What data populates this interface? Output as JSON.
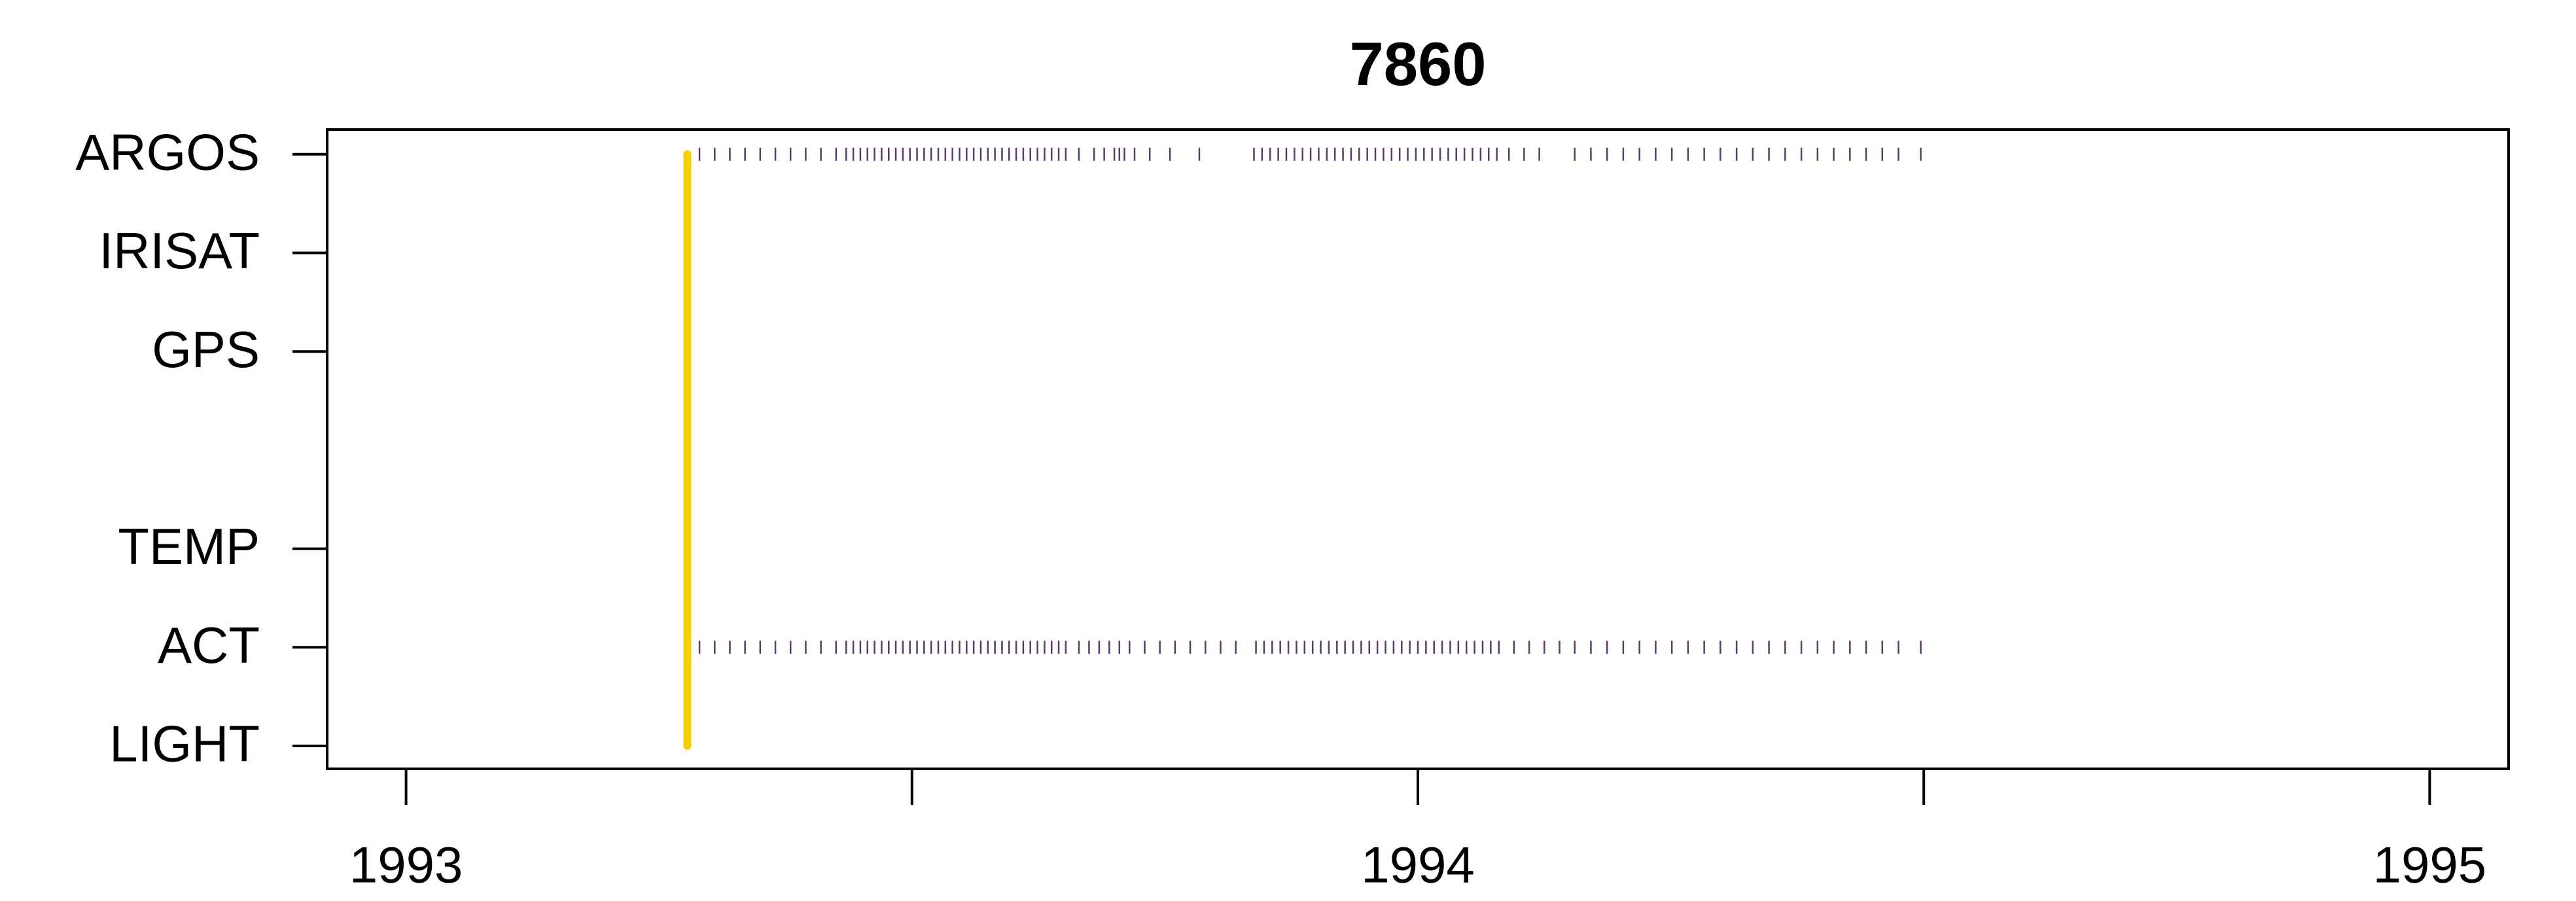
{
  "chart_data": {
    "type": "timeline",
    "title": "7860",
    "categories": [
      "LIGHT",
      "ACT",
      "TEMP",
      null,
      "GPS",
      "IRISAT",
      "ARGOS"
    ],
    "x": [
      [],
      [
        1993.29,
        1993.305,
        1993.32,
        1993.335,
        1993.35,
        1993.365,
        1993.38,
        1993.395,
        1993.41,
        1993.425,
        1993.435,
        1993.442,
        1993.449,
        1993.456,
        1993.463,
        1993.47,
        1993.477,
        1993.484,
        1993.491,
        1993.498,
        1993.505,
        1993.512,
        1993.519,
        1993.526,
        1993.533,
        1993.54,
        1993.547,
        1993.554,
        1993.561,
        1993.568,
        1993.575,
        1993.582,
        1993.589,
        1993.596,
        1993.603,
        1993.61,
        1993.617,
        1993.624,
        1993.631,
        1993.638,
        1993.645,
        1993.652,
        1993.665,
        1993.675,
        1993.685,
        1993.695,
        1993.705,
        1993.715,
        1993.73,
        1993.745,
        1993.76,
        1993.775,
        1993.79,
        1993.805,
        1993.82,
        1993.84,
        1993.848,
        1993.856,
        1993.864,
        1993.872,
        1993.88,
        1993.888,
        1993.896,
        1993.904,
        1993.912,
        1993.92,
        1993.928,
        1993.936,
        1993.944,
        1993.952,
        1993.96,
        1993.968,
        1993.976,
        1993.984,
        1993.992,
        1994.0,
        1994.008,
        1994.016,
        1994.024,
        1994.032,
        1994.04,
        1994.048,
        1994.056,
        1994.064,
        1994.072,
        1994.08,
        1994.095,
        1994.11,
        1994.125,
        1994.14,
        1994.155,
        1994.171,
        1994.187,
        1994.203,
        1994.219,
        1994.235,
        1994.251,
        1994.267,
        1994.283,
        1994.299,
        1994.315,
        1994.331,
        1994.347,
        1994.363,
        1994.379,
        1994.395,
        1994.411,
        1994.427,
        1994.443,
        1994.459,
        1994.475,
        1994.497
      ],
      [],
      [],
      [],
      [],
      [
        1993.29,
        1993.305,
        1993.32,
        1993.335,
        1993.35,
        1993.365,
        1993.38,
        1993.395,
        1993.41,
        1993.425,
        1993.435,
        1993.442,
        1993.449,
        1993.456,
        1993.463,
        1993.47,
        1993.477,
        1993.484,
        1993.491,
        1993.498,
        1993.505,
        1993.512,
        1993.519,
        1993.526,
        1993.533,
        1993.54,
        1993.547,
        1993.554,
        1993.561,
        1993.568,
        1993.575,
        1993.582,
        1993.589,
        1993.596,
        1993.603,
        1993.61,
        1993.617,
        1993.624,
        1993.631,
        1993.638,
        1993.645,
        1993.652,
        1993.665,
        1993.68,
        1993.69,
        1993.7,
        1993.705,
        1993.71,
        1993.72,
        1993.735,
        1993.755,
        1993.784,
        1993.838,
        1993.846,
        1993.854,
        1993.862,
        1993.87,
        1993.878,
        1993.886,
        1993.894,
        1993.902,
        1993.91,
        1993.918,
        1993.926,
        1993.934,
        1993.942,
        1993.95,
        1993.958,
        1993.966,
        1993.974,
        1993.982,
        1993.99,
        1993.998,
        1994.006,
        1994.014,
        1994.022,
        1994.03,
        1994.038,
        1994.046,
        1994.054,
        1994.062,
        1994.07,
        1994.078,
        1994.09,
        1994.105,
        1994.12,
        1994.155,
        1994.171,
        1994.187,
        1994.203,
        1994.219,
        1994.235,
        1994.251,
        1994.267,
        1994.283,
        1994.299,
        1994.315,
        1994.331,
        1994.347,
        1994.363,
        1994.379,
        1994.395,
        1994.411,
        1994.427,
        1994.443,
        1994.459,
        1994.475,
        1994.497
      ]
    ],
    "color": "#5b3b6b",
    "marker": {
      "x": 1993.278,
      "color": "#f5d000"
    },
    "xlim": [
      1992.922,
      1995.078
    ],
    "xticks": [
      1993,
      {
        "value": 1993.5,
        "label": null
      },
      1994,
      {
        "value": 1994.5,
        "label": null
      },
      1995
    ]
  }
}
